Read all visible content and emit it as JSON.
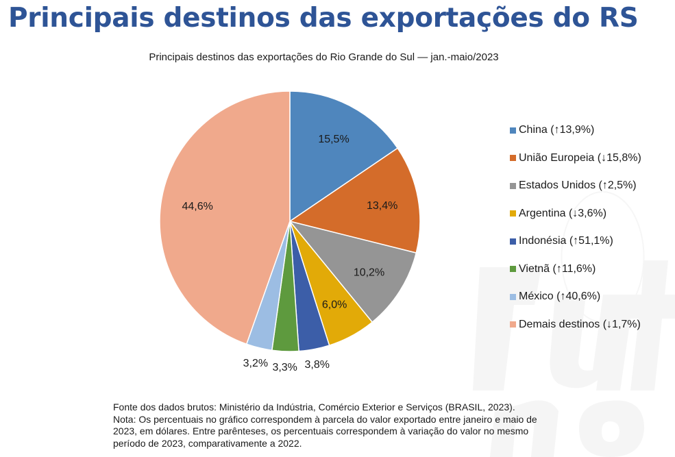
{
  "header": {
    "title": "Principais destinos das exportações do RS"
  },
  "chart_data": {
    "type": "pie",
    "title": "Principais destinos das exportações do Rio Grande do Sul — jan.-maio/2023",
    "unit": "%",
    "slices": [
      {
        "name": "China",
        "legend": "China (↑13,9%)",
        "value": 15.5,
        "label": "15,5%",
        "color": "#4f86bd"
      },
      {
        "name": "União Europeia",
        "legend": "União Europeia (↓15,8%)",
        "value": 13.4,
        "label": "13,4%",
        "color": "#d46c2a"
      },
      {
        "name": "Estados Unidos",
        "legend": "Estados Unidos (↑2,5%)",
        "value": 10.2,
        "label": "10,2%",
        "color": "#959595"
      },
      {
        "name": "Argentina",
        "legend": "Argentina (↓3,6%)",
        "value": 6.0,
        "label": "6,0%",
        "color": "#e2aa08"
      },
      {
        "name": "Indonésia",
        "legend": "Indonésia (↑51,1%)",
        "value": 3.8,
        "label": "3,8%",
        "color": "#3c5ea8"
      },
      {
        "name": "Vietnã",
        "legend": "Vietnã (↑11,6%)",
        "value": 3.3,
        "label": "3,3%",
        "color": "#5e9a3e"
      },
      {
        "name": "México",
        "legend": "México (↑40,6%)",
        "value": 3.2,
        "label": "3,2%",
        "color": "#9cbde3"
      },
      {
        "name": "Demais destinos",
        "legend": "Demais destinos (↓1,7%)",
        "value": 44.6,
        "label": "44,6%",
        "color": "#f0a98c"
      }
    ],
    "legend_position": "right"
  },
  "footer": {
    "source": "Fonte dos dados brutos: Ministério da Indústria, Comércio Exterior e Serviços (BRASIL, 2023).",
    "note_lines": [
      "Nota: Os percentuais no gráfico correspondem à parcela do valor exportado entre janeiro e maio de",
      "2023, em dólares. Entre parênteses, os percentuais correspondem à variação do valor no mesmo",
      "período de 2023, comparativamente a 2022."
    ]
  }
}
